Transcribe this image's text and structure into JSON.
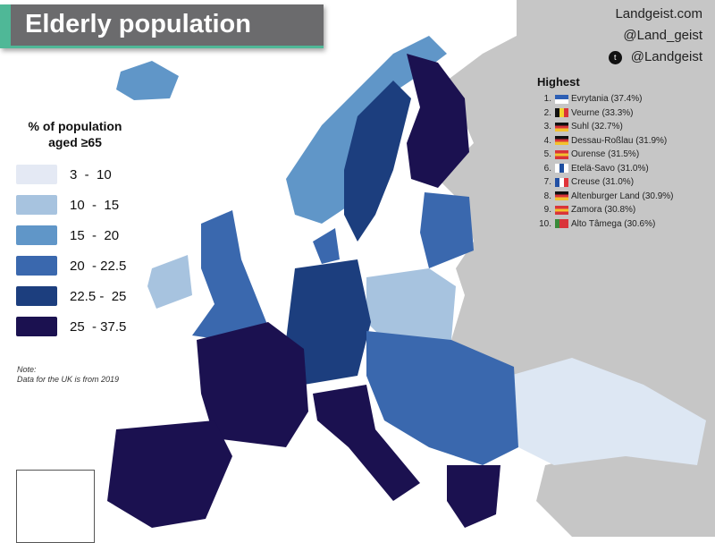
{
  "title": "Elderly population",
  "credits": {
    "website": "Landgeist.com",
    "handle1": "@Land_geist",
    "twitter": "@Landgeist",
    "twitter_icon": "twitter-bird-icon"
  },
  "legend": {
    "title_line1": "% of population",
    "title_line2": "aged ≥65",
    "classes": [
      {
        "label": "3  -  10",
        "color": "#e4e9f4"
      },
      {
        "label": "10  -  15",
        "color": "#a7c3df"
      },
      {
        "label": "15  -  20",
        "color": "#6096c8"
      },
      {
        "label": "20  - 22.5",
        "color": "#3a68ae"
      },
      {
        "label": "22.5 -  25",
        "color": "#1c3e7e"
      },
      {
        "label": "25  - 37.5",
        "color": "#1b1150"
      }
    ]
  },
  "note": {
    "line1": "Note:",
    "line2": "Data for the UK is from 2019"
  },
  "highest": {
    "title": "Highest",
    "items": [
      {
        "rank": "1.",
        "name": "Evrytania (37.4%)",
        "flag": [
          "#2d5fb4",
          "#ffffff"
        ]
      },
      {
        "rank": "2.",
        "name": "Veurne (33.3%)",
        "flag": [
          "#111111",
          "#f2d22e",
          "#d9343a"
        ]
      },
      {
        "rank": "3.",
        "name": "Suhl (32.7%)",
        "flag": [
          "#111111",
          "#d9343a",
          "#f2c22e"
        ]
      },
      {
        "rank": "4.",
        "name": "Dessau-Roßlau (31.9%)",
        "flag": [
          "#111111",
          "#d9343a",
          "#f2c22e"
        ]
      },
      {
        "rank": "5.",
        "name": "Ourense (31.5%)",
        "flag": [
          "#d9343a",
          "#f2c22e",
          "#d9343a"
        ]
      },
      {
        "rank": "6.",
        "name": "Etelä-Savo (31.0%)",
        "flag": [
          "#ffffff",
          "#1f4fa0",
          "#ffffff"
        ]
      },
      {
        "rank": "7.",
        "name": "Creuse (31.0%)",
        "flag": [
          "#2250a4",
          "#ffffff",
          "#e0343a"
        ]
      },
      {
        "rank": "8.",
        "name": "Altenburger Land (30.9%)",
        "flag": [
          "#111111",
          "#d9343a",
          "#f2c22e"
        ]
      },
      {
        "rank": "9.",
        "name": "Zamora (30.8%)",
        "flag": [
          "#d9343a",
          "#f2c22e",
          "#d9343a"
        ]
      },
      {
        "rank": "10.",
        "name": "Alto Tâmega (30.6%)",
        "flag": [
          "#3a8a3a",
          "#d9343a",
          "#d9343a"
        ]
      }
    ]
  },
  "colors": {
    "non_data_land": "#c6c6c6",
    "sea": "#ffffff",
    "title_bg": "#6b6b6d",
    "accent": "#4fb897"
  }
}
